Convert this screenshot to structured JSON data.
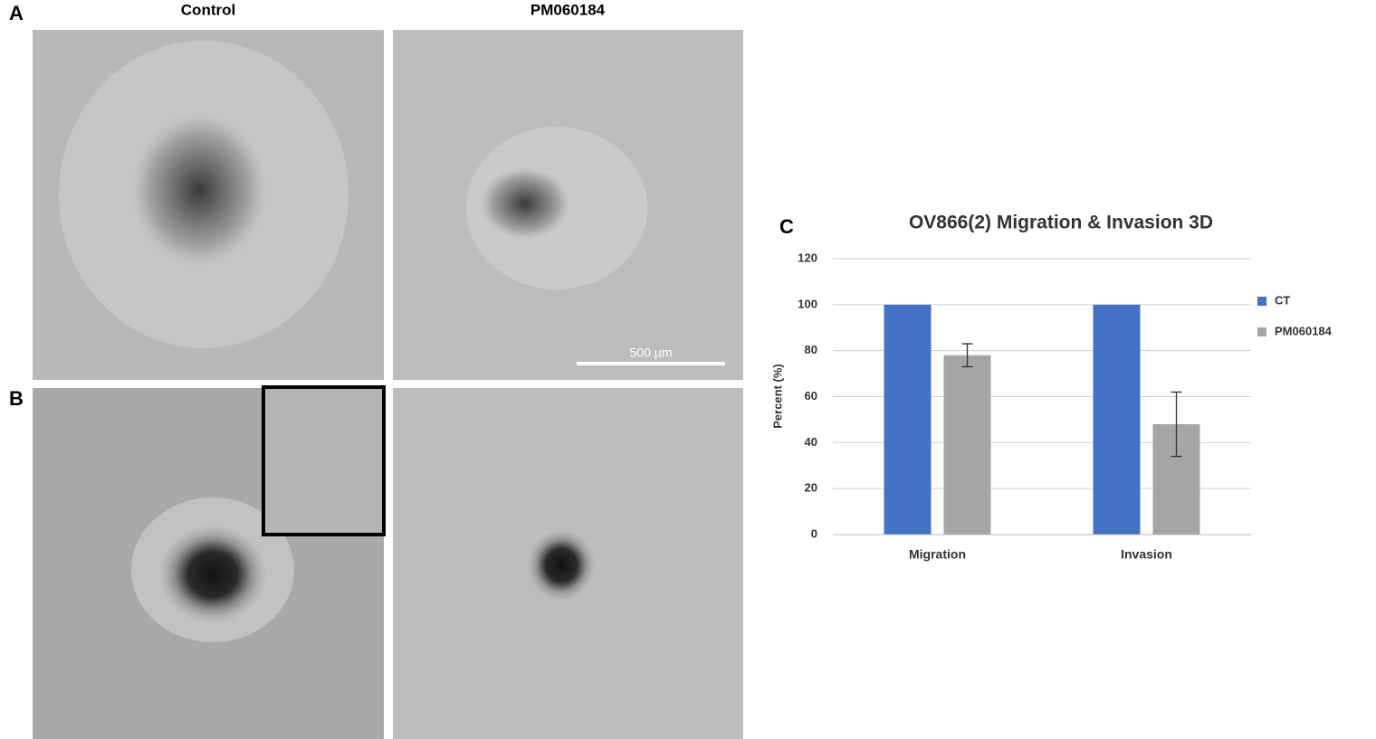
{
  "figure": {
    "panel_labels": [
      "A",
      "B",
      "C"
    ],
    "column_titles": [
      "Control",
      "PM060184"
    ],
    "scale_bar": "500 µm"
  },
  "chart_data": {
    "type": "bar",
    "title": "OV866(2) Migration & Invasion 3D",
    "y_label": "Percent (%)",
    "categories": [
      "Migration",
      "Invasion"
    ],
    "series": [
      {
        "name": "CT",
        "color": "#4472c4",
        "values": [
          100,
          100
        ]
      },
      {
        "name": "PM060184",
        "color": "#a5a5a5",
        "values": [
          78,
          48
        ],
        "errors": [
          5,
          14
        ]
      }
    ],
    "ylim": [
      0,
      120
    ],
    "yticks": [
      0,
      20,
      40,
      60,
      80,
      100,
      120
    ],
    "grid": true,
    "legend": "right"
  }
}
